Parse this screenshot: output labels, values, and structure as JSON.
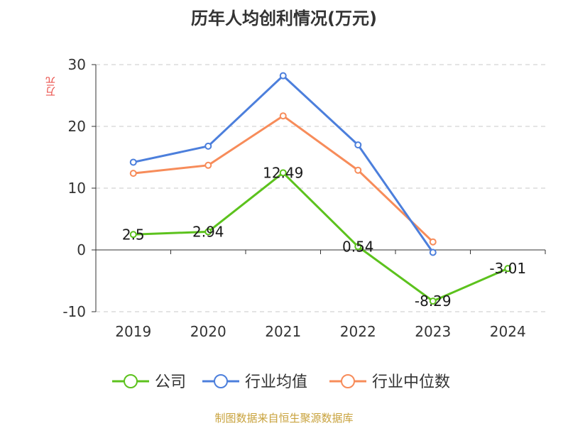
{
  "chart_data": {
    "type": "line",
    "title": "历年人均创利情况(万元)",
    "ylabel": "万元",
    "xlabel": "",
    "categories": [
      "2019",
      "2020",
      "2021",
      "2022",
      "2023",
      "2024"
    ],
    "ylim": [
      -10,
      30
    ],
    "yticks": [
      30,
      20,
      10,
      0,
      -10
    ],
    "grid": true,
    "legend_position": "bottom",
    "series": [
      {
        "name": "公司",
        "color": "#5cc21d",
        "values": [
          2.5,
          2.94,
          12.49,
          0.54,
          -8.29,
          -3.01
        ],
        "labels": [
          "2.5",
          "2.94",
          "12.49",
          "0.54",
          "-8.29",
          "-3.01"
        ]
      },
      {
        "name": "行业均值",
        "color": "#4c7fdc",
        "values": [
          14.2,
          16.8,
          28.2,
          17.0,
          -0.4,
          null
        ]
      },
      {
        "name": "行业中位数",
        "color": "#f78c5a",
        "values": [
          12.4,
          13.7,
          21.7,
          12.9,
          1.3,
          null
        ]
      }
    ]
  },
  "footer": {
    "source": "制图数据来自恒生聚源数据库"
  }
}
